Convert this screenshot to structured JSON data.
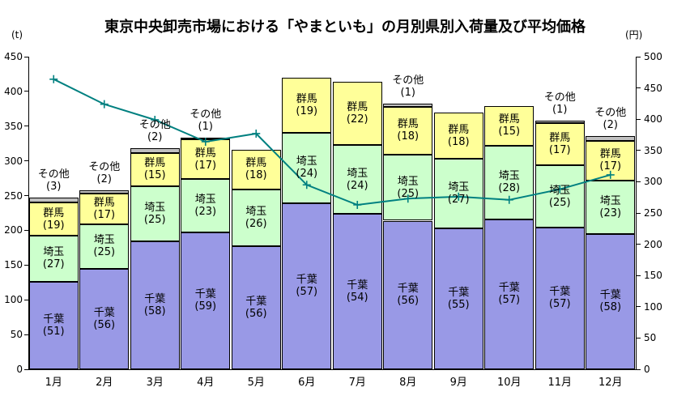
{
  "title": "東京中央卸売市場における「やまといも」の月別県別入荷量及び平均価格",
  "left_axis": {
    "unit": "(t)",
    "min": 0,
    "max": 450,
    "step": 50
  },
  "right_axis": {
    "unit": "(円)",
    "min": 0,
    "max": 500,
    "step": 50
  },
  "chart_data": {
    "type": "bar",
    "subtype": "stacked-bar-with-line-overlay",
    "title": "東京中央卸売市場における「やまといも」の月別県別入荷量及び平均価格",
    "categories": [
      "1月",
      "2月",
      "3月",
      "4月",
      "5月",
      "6月",
      "7月",
      "8月",
      "9月",
      "10月",
      "11月",
      "12月"
    ],
    "bar_value_unit": "t",
    "bar_totals_t": [
      247,
      258,
      318,
      334,
      316,
      420,
      414,
      382,
      369,
      379,
      358,
      336
    ],
    "series": [
      {
        "name": "千葉",
        "key": "chiba",
        "color": "#9999E6",
        "share_pct": [
          51,
          56,
          58,
          59,
          56,
          57,
          54,
          56,
          55,
          57,
          57,
          58
        ]
      },
      {
        "name": "埼玉",
        "key": "saitama",
        "color": "#CCFFCC",
        "share_pct": [
          27,
          25,
          25,
          23,
          26,
          24,
          24,
          25,
          27,
          28,
          25,
          23
        ]
      },
      {
        "name": "群馬",
        "key": "gunma",
        "color": "#FFFF99",
        "share_pct": [
          19,
          17,
          15,
          17,
          18,
          19,
          22,
          18,
          18,
          15,
          17,
          17
        ]
      },
      {
        "name": "その他",
        "key": "other",
        "color": "#C0C0C0",
        "share_pct": [
          3,
          2,
          2,
          1,
          0,
          0,
          0,
          1,
          0,
          0,
          1,
          2
        ]
      }
    ],
    "bar_label_format": "name(share_pct)",
    "line_series": {
      "name": "平均価格",
      "unit": "円",
      "color": "#008080",
      "marker": "plus",
      "values_yen": [
        464,
        424,
        399,
        364,
        377,
        295,
        263,
        273,
        276,
        271,
        288,
        311
      ]
    },
    "ylim_left": [
      0,
      450
    ],
    "ylim_right": [
      0,
      500
    ],
    "grid": false,
    "legend": "none"
  }
}
